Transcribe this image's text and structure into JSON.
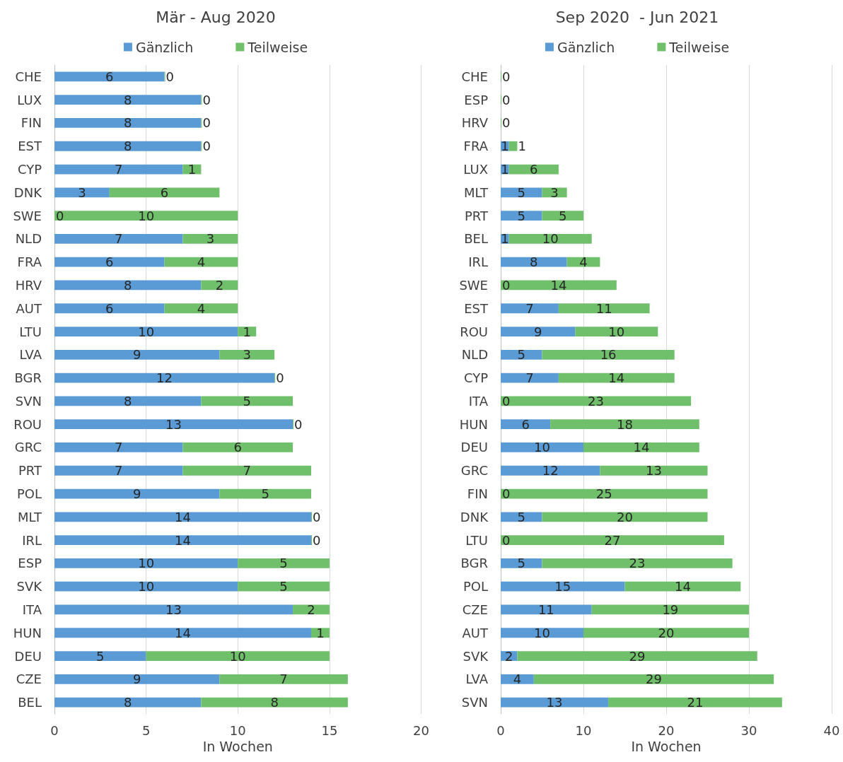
{
  "chart_data": [
    {
      "type": "bar",
      "orientation": "horizontal",
      "stacked": true,
      "title": "Mär - Aug 2020",
      "xlabel": "In Wochen",
      "categories": [
        "CHE",
        "LUX",
        "FIN",
        "EST",
        "CYP",
        "DNK",
        "SWE",
        "NLD",
        "FRA",
        "HRV",
        "AUT",
        "LTU",
        "LVA",
        "BGR",
        "SVN",
        "ROU",
        "GRC",
        "PRT",
        "POL",
        "MLT",
        "IRL",
        "ESP",
        "SVK",
        "ITA",
        "HUN",
        "DEU",
        "CZE",
        "BEL"
      ],
      "series": [
        {
          "name": "Gänzlich",
          "color": "#5b9bd5",
          "values": [
            6,
            8,
            8,
            8,
            7,
            3,
            0,
            7,
            6,
            8,
            6,
            10,
            9,
            12,
            8,
            13,
            7,
            7,
            9,
            14,
            14,
            10,
            10,
            13,
            14,
            5,
            9,
            8
          ]
        },
        {
          "name": "Teilweise",
          "color": "#70bf6b",
          "values": [
            0,
            0,
            0,
            0,
            1,
            6,
            10,
            3,
            4,
            2,
            4,
            1,
            3,
            0,
            5,
            0,
            6,
            7,
            5,
            0,
            0,
            5,
            5,
            2,
            1,
            10,
            7,
            8
          ]
        }
      ],
      "xlim": [
        0,
        20
      ],
      "xticks": [
        0,
        5,
        10,
        15,
        20
      ],
      "grid": "x",
      "legend": "top",
      "data_labels": true
    },
    {
      "type": "bar",
      "orientation": "horizontal",
      "stacked": true,
      "title": "Sep 2020  - Jun 2021",
      "xlabel": "In Wochen",
      "categories": [
        "CHE",
        "ESP",
        "HRV",
        "FRA",
        "LUX",
        "MLT",
        "PRT",
        "BEL",
        "IRL",
        "SWE",
        "EST",
        "ROU",
        "NLD",
        "CYP",
        "ITA",
        "HUN",
        "DEU",
        "GRC",
        "FIN",
        "DNK",
        "LTU",
        "BGR",
        "POL",
        "CZE",
        "AUT",
        "SVK",
        "LVA",
        "SVN"
      ],
      "series": [
        {
          "name": "Gänzlich",
          "color": "#5b9bd5",
          "values": [
            0,
            0,
            0,
            1,
            1,
            5,
            5,
            1,
            8,
            0,
            7,
            9,
            5,
            7,
            0,
            6,
            10,
            12,
            0,
            5,
            0,
            5,
            15,
            11,
            10,
            2,
            4,
            13
          ]
        },
        {
          "name": "Teilweise",
          "color": "#70bf6b",
          "values": [
            0,
            0,
            0,
            1,
            6,
            3,
            5,
            10,
            4,
            14,
            11,
            10,
            16,
            14,
            23,
            18,
            14,
            13,
            25,
            20,
            27,
            23,
            14,
            19,
            20,
            29,
            29,
            21
          ],
          "value_labels": [
            null,
            null,
            null,
            "1",
            "6",
            "3",
            "5",
            "10",
            "4",
            "14",
            "11",
            "10",
            "16",
            "14",
            "23",
            "18",
            "14",
            "13",
            "25",
            "20",
            "27",
            "23",
            "14",
            "19",
            "20",
            "29",
            "29",
            "21"
          ]
        }
      ],
      "xlim": [
        0,
        40
      ],
      "xticks": [
        0,
        10,
        20,
        30,
        40
      ],
      "grid": "x",
      "legend": "top",
      "data_labels": true
    }
  ]
}
